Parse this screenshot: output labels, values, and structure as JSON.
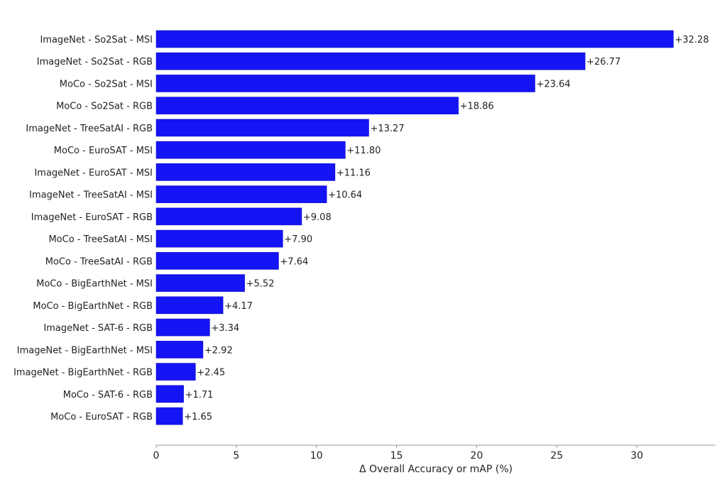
{
  "chart_data": {
    "type": "bar",
    "orientation": "horizontal",
    "title": "",
    "xlabel": "Δ Overall Accuracy or mAP (%)",
    "ylabel": "",
    "xlim": [
      0,
      34.9
    ],
    "xticks": [
      0,
      5,
      10,
      15,
      20,
      25,
      30
    ],
    "grid": false,
    "bar_color": "#1414f5",
    "categories": [
      "ImageNet - So2Sat - MSI",
      "ImageNet - So2Sat - RGB",
      "MoCo - So2Sat - MSI",
      "MoCo - So2Sat - RGB",
      "ImageNet - TreeSatAI - RGB",
      "MoCo - EuroSAT - MSI",
      "ImageNet - EuroSAT - MSI",
      "ImageNet - TreeSatAI - MSI",
      "ImageNet - EuroSAT - RGB",
      "MoCo - TreeSatAI - MSI",
      "MoCo - TreeSatAI - RGB",
      "MoCo - BigEarthNet - MSI",
      "MoCo - BigEarthNet - RGB",
      "ImageNet - SAT-6 - RGB",
      "ImageNet - BigEarthNet - MSI",
      "ImageNet - BigEarthNet - RGB",
      "MoCo - SAT-6 - RGB",
      "MoCo - EuroSAT - RGB"
    ],
    "values": [
      32.28,
      26.77,
      23.64,
      18.86,
      13.27,
      11.8,
      11.16,
      10.64,
      9.08,
      7.9,
      7.64,
      5.52,
      4.17,
      3.34,
      2.92,
      2.45,
      1.71,
      1.65
    ],
    "data_labels": [
      "+32.28",
      "+26.77",
      "+23.64",
      "+18.86",
      "+13.27",
      "+11.80",
      "+11.16",
      "+10.64",
      "+9.08",
      "+7.90",
      "+7.64",
      "+5.52",
      "+4.17",
      "+3.34",
      "+2.92",
      "+2.45",
      "+1.71",
      "+1.65"
    ]
  }
}
